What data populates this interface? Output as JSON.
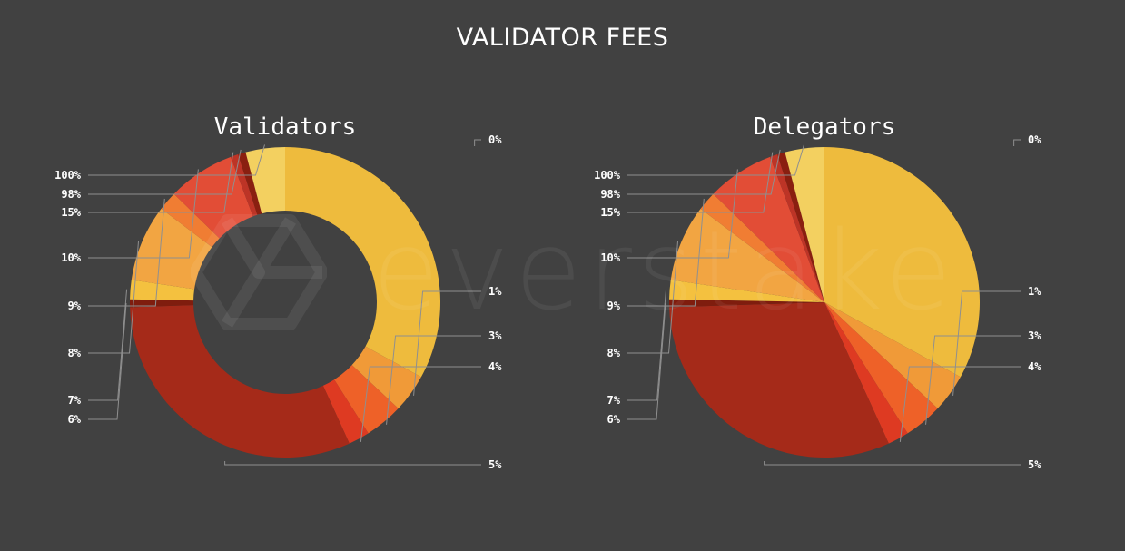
{
  "page_title": "VALIDATOR FEES",
  "watermark_text": "everstake",
  "chart_data": [
    {
      "type": "pie",
      "variant": "donut",
      "title": "Validators",
      "slices": [
        {
          "label": "0%",
          "value": 33.0,
          "color": "#eebb3d"
        },
        {
          "label": "1%",
          "value": 4.0,
          "color": "#f09a38"
        },
        {
          "label": "3%",
          "value": 4.0,
          "color": "#ee6128"
        },
        {
          "label": "4%",
          "value": 2.2,
          "color": "#de3a22"
        },
        {
          "label": "5%",
          "value": 31.3,
          "color": "#a52a19"
        },
        {
          "label": "6%",
          "value": 0.8,
          "color": "#7f1d0e"
        },
        {
          "label": "7%",
          "value": 2.0,
          "color": "#f4c13f"
        },
        {
          "label": "8%",
          "value": 8.0,
          "color": "#f2a542"
        },
        {
          "label": "9%",
          "value": 2.0,
          "color": "#f07d33"
        },
        {
          "label": "10%",
          "value": 7.0,
          "color": "#e24d36"
        },
        {
          "label": "15%",
          "value": 0.8,
          "color": "#bd3426"
        },
        {
          "label": "98%",
          "value": 0.8,
          "color": "#8a1f10"
        },
        {
          "label": "100%",
          "value": 4.1,
          "color": "#f3d060"
        }
      ]
    },
    {
      "type": "pie",
      "variant": "pie",
      "title": "Delegators",
      "slices": [
        {
          "label": "0%",
          "value": 33.0,
          "color": "#eebb3d"
        },
        {
          "label": "1%",
          "value": 4.0,
          "color": "#f09a38"
        },
        {
          "label": "3%",
          "value": 4.0,
          "color": "#ee6128"
        },
        {
          "label": "4%",
          "value": 2.2,
          "color": "#de3a22"
        },
        {
          "label": "5%",
          "value": 31.3,
          "color": "#a52a19"
        },
        {
          "label": "6%",
          "value": 0.8,
          "color": "#7f1d0e"
        },
        {
          "label": "7%",
          "value": 2.0,
          "color": "#f4c13f"
        },
        {
          "label": "8%",
          "value": 8.0,
          "color": "#f2a542"
        },
        {
          "label": "9%",
          "value": 2.0,
          "color": "#f07d33"
        },
        {
          "label": "10%",
          "value": 7.0,
          "color": "#e24d36"
        },
        {
          "label": "15%",
          "value": 0.8,
          "color": "#bd3426"
        },
        {
          "label": "98%",
          "value": 0.8,
          "color": "#8a1f10"
        },
        {
          "label": "100%",
          "value": 4.1,
          "color": "#f3d060"
        }
      ]
    }
  ]
}
